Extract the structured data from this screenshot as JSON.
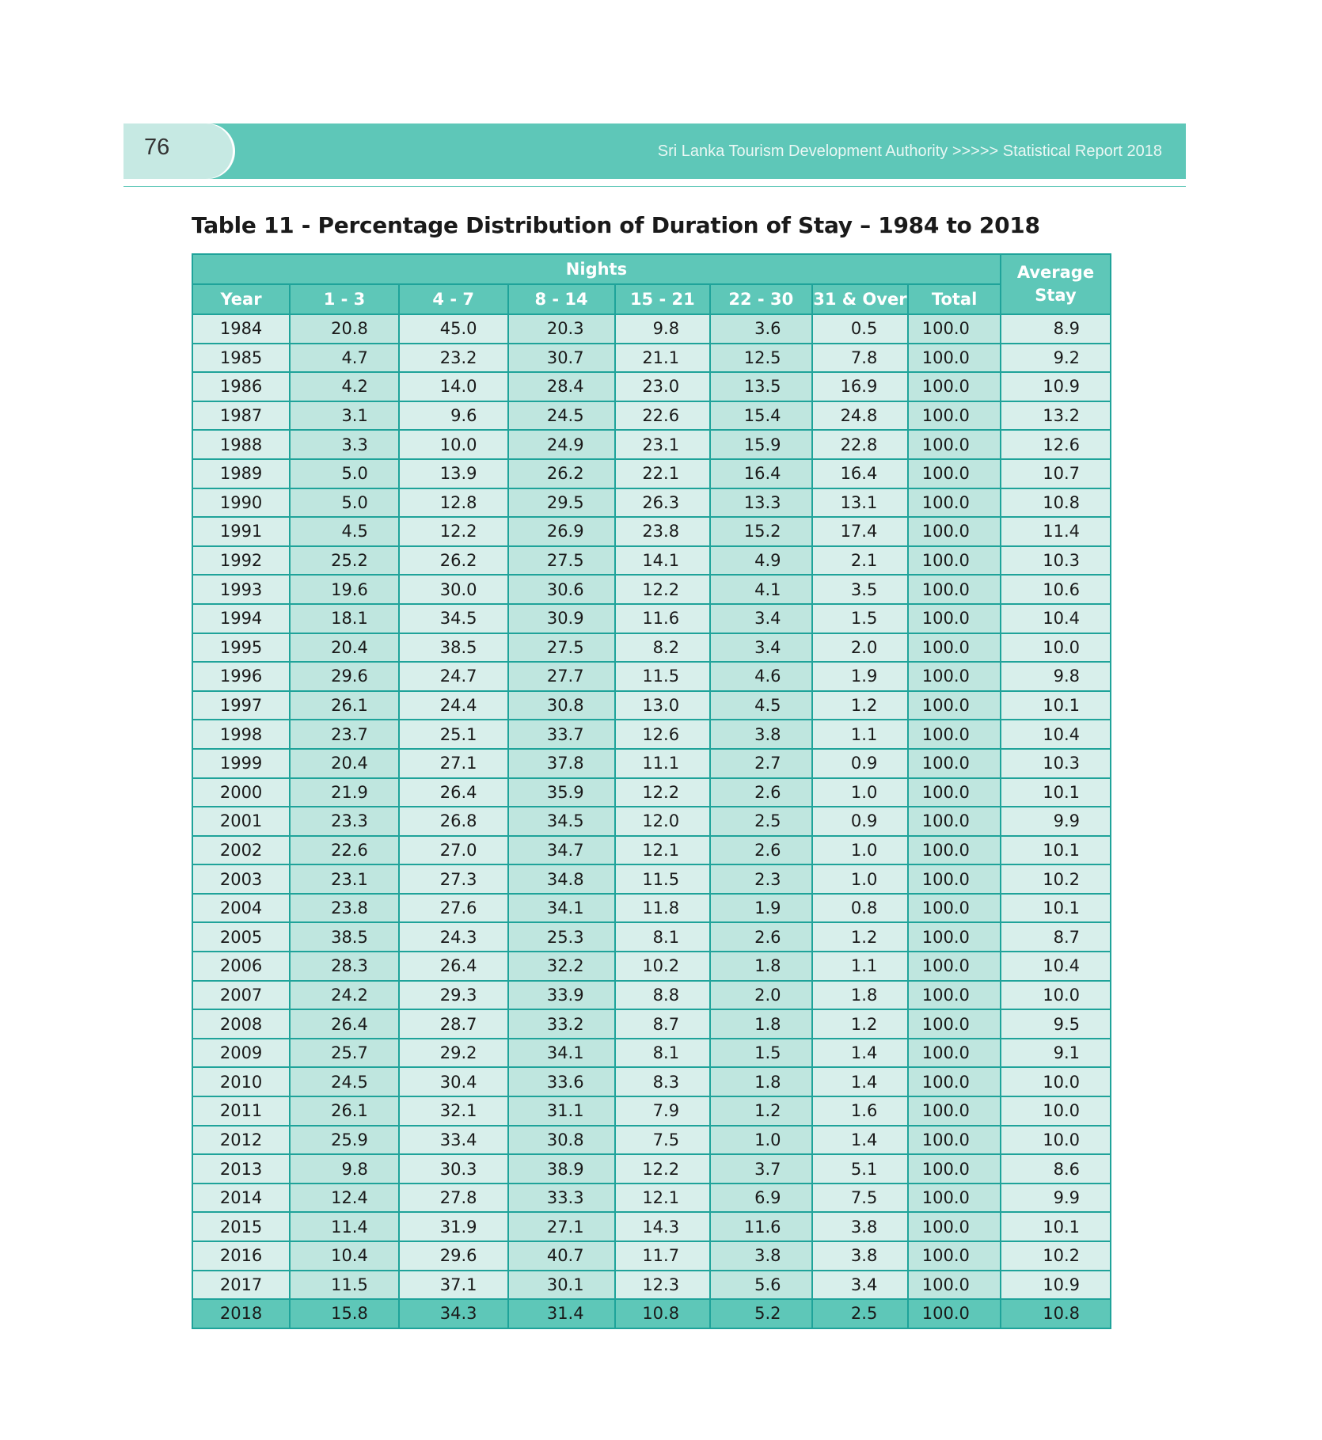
{
  "header": {
    "page_number": "76",
    "report_title": "Sri Lanka Tourism Development Authority >>>>> Statistical Report 2018"
  },
  "table": {
    "title": "Table 11 - Percentage Distribution of Duration of Stay – 1984 to 2018",
    "group_header": "Nights",
    "average_header": "Average Stay",
    "columns": [
      "Year",
      "1 - 3",
      "4 - 7",
      "8 - 14",
      "15 - 21",
      "22 - 30",
      "31 & Over",
      "Total"
    ],
    "rows": [
      [
        "1984",
        "20.8",
        "45.0",
        "20.3",
        "9.8",
        "3.6",
        "0.5",
        "100.0",
        "8.9"
      ],
      [
        "1985",
        "4.7",
        "23.2",
        "30.7",
        "21.1",
        "12.5",
        "7.8",
        "100.0",
        "9.2"
      ],
      [
        "1986",
        "4.2",
        "14.0",
        "28.4",
        "23.0",
        "13.5",
        "16.9",
        "100.0",
        "10.9"
      ],
      [
        "1987",
        "3.1",
        "9.6",
        "24.5",
        "22.6",
        "15.4",
        "24.8",
        "100.0",
        "13.2"
      ],
      [
        "1988",
        "3.3",
        "10.0",
        "24.9",
        "23.1",
        "15.9",
        "22.8",
        "100.0",
        "12.6"
      ],
      [
        "1989",
        "5.0",
        "13.9",
        "26.2",
        "22.1",
        "16.4",
        "16.4",
        "100.0",
        "10.7"
      ],
      [
        "1990",
        "5.0",
        "12.8",
        "29.5",
        "26.3",
        "13.3",
        "13.1",
        "100.0",
        "10.8"
      ],
      [
        "1991",
        "4.5",
        "12.2",
        "26.9",
        "23.8",
        "15.2",
        "17.4",
        "100.0",
        "11.4"
      ],
      [
        "1992",
        "25.2",
        "26.2",
        "27.5",
        "14.1",
        "4.9",
        "2.1",
        "100.0",
        "10.3"
      ],
      [
        "1993",
        "19.6",
        "30.0",
        "30.6",
        "12.2",
        "4.1",
        "3.5",
        "100.0",
        "10.6"
      ],
      [
        "1994",
        "18.1",
        "34.5",
        "30.9",
        "11.6",
        "3.4",
        "1.5",
        "100.0",
        "10.4"
      ],
      [
        "1995",
        "20.4",
        "38.5",
        "27.5",
        "8.2",
        "3.4",
        "2.0",
        "100.0",
        "10.0"
      ],
      [
        "1996",
        "29.6",
        "24.7",
        "27.7",
        "11.5",
        "4.6",
        "1.9",
        "100.0",
        "9.8"
      ],
      [
        "1997",
        "26.1",
        "24.4",
        "30.8",
        "13.0",
        "4.5",
        "1.2",
        "100.0",
        "10.1"
      ],
      [
        "1998",
        "23.7",
        "25.1",
        "33.7",
        "12.6",
        "3.8",
        "1.1",
        "100.0",
        "10.4"
      ],
      [
        "1999",
        "20.4",
        "27.1",
        "37.8",
        "11.1",
        "2.7",
        "0.9",
        "100.0",
        "10.3"
      ],
      [
        "2000",
        "21.9",
        "26.4",
        "35.9",
        "12.2",
        "2.6",
        "1.0",
        "100.0",
        "10.1"
      ],
      [
        "2001",
        "23.3",
        "26.8",
        "34.5",
        "12.0",
        "2.5",
        "0.9",
        "100.0",
        "9.9"
      ],
      [
        "2002",
        "22.6",
        "27.0",
        "34.7",
        "12.1",
        "2.6",
        "1.0",
        "100.0",
        "10.1"
      ],
      [
        "2003",
        "23.1",
        "27.3",
        "34.8",
        "11.5",
        "2.3",
        "1.0",
        "100.0",
        "10.2"
      ],
      [
        "2004",
        "23.8",
        "27.6",
        "34.1",
        "11.8",
        "1.9",
        "0.8",
        "100.0",
        "10.1"
      ],
      [
        "2005",
        "38.5",
        "24.3",
        "25.3",
        "8.1",
        "2.6",
        "1.2",
        "100.0",
        "8.7"
      ],
      [
        "2006",
        "28.3",
        "26.4",
        "32.2",
        "10.2",
        "1.8",
        "1.1",
        "100.0",
        "10.4"
      ],
      [
        "2007",
        "24.2",
        "29.3",
        "33.9",
        "8.8",
        "2.0",
        "1.8",
        "100.0",
        "10.0"
      ],
      [
        "2008",
        "26.4",
        "28.7",
        "33.2",
        "8.7",
        "1.8",
        "1.2",
        "100.0",
        "9.5"
      ],
      [
        "2009",
        "25.7",
        "29.2",
        "34.1",
        "8.1",
        "1.5",
        "1.4",
        "100.0",
        "9.1"
      ],
      [
        "2010",
        "24.5",
        "30.4",
        "33.6",
        "8.3",
        "1.8",
        "1.4",
        "100.0",
        "10.0"
      ],
      [
        "2011",
        "26.1",
        "32.1",
        "31.1",
        "7.9",
        "1.2",
        "1.6",
        "100.0",
        "10.0"
      ],
      [
        "2012",
        "25.9",
        "33.4",
        "30.8",
        "7.5",
        "1.0",
        "1.4",
        "100.0",
        "10.0"
      ],
      [
        "2013",
        "9.8",
        "30.3",
        "38.9",
        "12.2",
        "3.7",
        "5.1",
        "100.0",
        "8.6"
      ],
      [
        "2014",
        "12.4",
        "27.8",
        "33.3",
        "12.1",
        "6.9",
        "7.5",
        "100.0",
        "9.9"
      ],
      [
        "2015",
        "11.4",
        "31.9",
        "27.1",
        "14.3",
        "11.6",
        "3.8",
        "100.0",
        "10.1"
      ],
      [
        "2016",
        "10.4",
        "29.6",
        "40.7",
        "11.7",
        "3.8",
        "3.8",
        "100.0",
        "10.2"
      ],
      [
        "2017",
        "11.5",
        "37.1",
        "30.1",
        "12.3",
        "5.6",
        "3.4",
        "100.0",
        "10.9"
      ],
      [
        "2018",
        "15.8",
        "34.3",
        "31.4",
        "10.8",
        "5.2",
        "2.5",
        "100.0",
        "10.8"
      ]
    ]
  },
  "colors": {
    "header_band": "#5ec7b8",
    "page_tab": "#c6e9e3",
    "table_border": "#1fa39a",
    "row_light": "#d8efeb",
    "row_mid": "#bfe6df"
  }
}
